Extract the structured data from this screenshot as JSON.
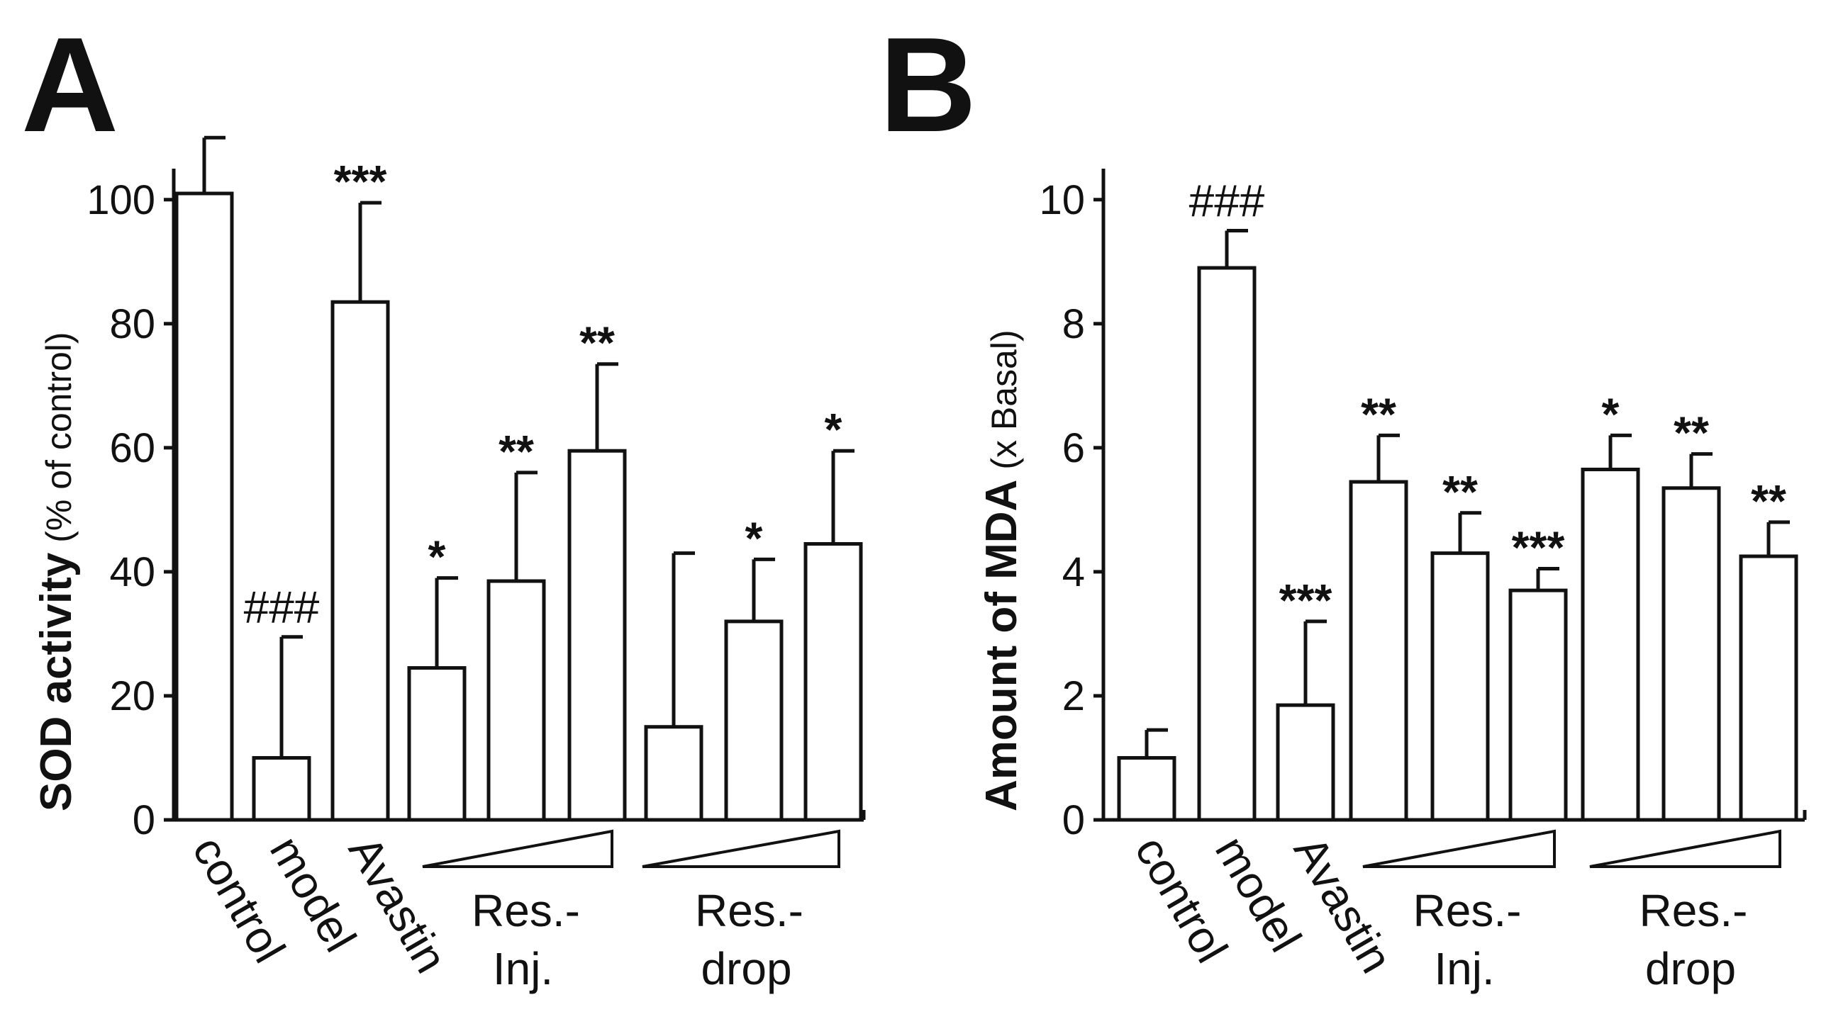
{
  "chart_data": [
    {
      "panel": "A",
      "type": "bar",
      "ylabel_bold": "SOD activity",
      "ylabel_unit": "(% of control)",
      "ylim": [
        0,
        105
      ],
      "yticks": [
        0,
        20,
        40,
        60,
        80,
        100
      ],
      "categories": [
        "control",
        "model",
        "Avastin",
        "Res.-Inj. low",
        "Res.-Inj. mid",
        "Res.-Inj. high",
        "Res.-drop low",
        "Res.-drop mid",
        "Res.-drop high"
      ],
      "category_labels": [
        "control",
        "model",
        "Avastin"
      ],
      "group_labels": [
        {
          "line1": "Res.-",
          "line2": "Inj."
        },
        {
          "line1": "Res.-",
          "line2": "drop"
        }
      ],
      "values": [
        101,
        10,
        83.5,
        24.5,
        38.5,
        59.5,
        15,
        32,
        44.5
      ],
      "errors": [
        9,
        19.5,
        16,
        14.5,
        17.5,
        14,
        28,
        10,
        15
      ],
      "significance": [
        "",
        "###",
        "***",
        "*",
        "**",
        "**",
        "",
        "*",
        "*"
      ]
    },
    {
      "panel": "B",
      "type": "bar",
      "ylabel_bold": "Amount of MDA",
      "ylabel_unit": "(x Basal)",
      "ylim": [
        0,
        10.5
      ],
      "yticks": [
        0,
        2,
        4,
        6,
        8,
        10
      ],
      "categories": [
        "control",
        "model",
        "Avastin",
        "Res.-Inj. low",
        "Res.-Inj. mid",
        "Res.-Inj. high",
        "Res.-drop low",
        "Res.-drop mid",
        "Res.-drop high"
      ],
      "category_labels": [
        "control",
        "model",
        "Avastin"
      ],
      "group_labels": [
        {
          "line1": "Res.-",
          "line2": "Inj."
        },
        {
          "line1": "Res.-",
          "line2": "drop"
        }
      ],
      "values": [
        1,
        8.9,
        1.85,
        5.45,
        4.3,
        3.7,
        5.65,
        5.35,
        4.25
      ],
      "errors": [
        0.45,
        0.6,
        1.35,
        0.75,
        0.65,
        0.35,
        0.55,
        0.55,
        0.55
      ],
      "significance": [
        "",
        "###",
        "***",
        "**",
        "**",
        "***",
        "*",
        "**",
        "**"
      ]
    }
  ]
}
